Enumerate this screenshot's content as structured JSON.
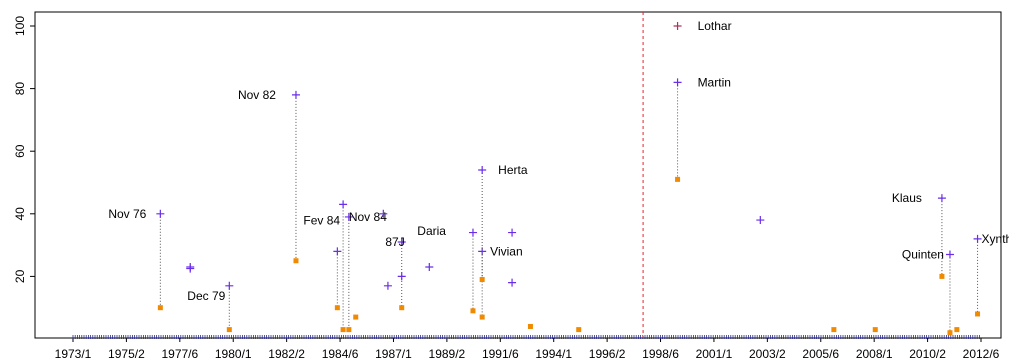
{
  "chart_data": {
    "type": "scatter",
    "title": "",
    "xlabel": "",
    "ylabel": "",
    "xlim": [
      1973.1,
      2012.6
    ],
    "ylim": [
      0,
      100
    ],
    "yticks": [
      20,
      40,
      60,
      80,
      100
    ],
    "xtick_labels": [
      "1973/1",
      "1975/2",
      "1977/6",
      "1980/1",
      "1982/2",
      "1984/6",
      "1987/1",
      "1989/2",
      "1991/6",
      "1994/1",
      "1996/2",
      "1998/6",
      "2001/1",
      "2003/2",
      "2005/6",
      "2008/1",
      "2010/2",
      "2012/6"
    ],
    "colors": {
      "plus": "#6a2ee8",
      "square": "#f08a00",
      "stem": "#555555",
      "vline": "#e8202a",
      "rug": "#2b2b8a"
    },
    "vline_x": 1997.9,
    "storms": [
      {
        "label": "Nov 76",
        "x": 1976.9,
        "plus": 40,
        "square": 10
      },
      {
        "label": "",
        "x": 1978.2,
        "plus": 22.5,
        "square": null
      },
      {
        "label": "",
        "x": 1978.2,
        "plus": 23,
        "square": null
      },
      {
        "label": "Dec 79",
        "x": 1979.9,
        "plus": 17,
        "square": 3
      },
      {
        "label": "Nov 82",
        "x": 1982.8,
        "plus": 78,
        "square": 25
      },
      {
        "label": "",
        "x": 1984.6,
        "plus": 28,
        "square": 10
      },
      {
        "label": "Fev 84",
        "x": 1984.85,
        "plus": 43,
        "square": 3
      },
      {
        "label": "Nov 84",
        "x": 1985.1,
        "plus": 39,
        "square": 3
      },
      {
        "label": "",
        "x": 1985.4,
        "plus": null,
        "square": 7
      },
      {
        "label": "",
        "x": 1986.6,
        "plus": 40,
        "square": null
      },
      {
        "label": "",
        "x": 1986.8,
        "plus": 17,
        "square": null
      },
      {
        "label": "87J",
        "x": 1987.4,
        "plus": 31,
        "square": 10
      },
      {
        "label": "",
        "x": 1987.4,
        "plus": 20,
        "square": null
      },
      {
        "label": "Daria",
        "x": 1988.6,
        "plus": 23,
        "square": null
      },
      {
        "label": "",
        "x": 1990.5,
        "plus": 34,
        "square": 9
      },
      {
        "label": "Vivian",
        "x": 1990.9,
        "plus": 28,
        "square": 7
      },
      {
        "label": "Herta",
        "x": 1990.9,
        "plus": 54,
        "square": 19
      },
      {
        "label": "",
        "x": 1992.2,
        "plus": 34,
        "square": null
      },
      {
        "label": "",
        "x": 1992.2,
        "plus": 18,
        "square": null
      },
      {
        "label": "",
        "x": 1993.0,
        "plus": null,
        "square": 4
      },
      {
        "label": "",
        "x": 1995.1,
        "plus": null,
        "square": 3
      },
      {
        "label": "Lothar",
        "x": 1999.4,
        "plus": 100,
        "square": null
      },
      {
        "label": "Martin",
        "x": 1999.4,
        "plus": 82,
        "square": 51
      },
      {
        "label": "",
        "x": 2003.0,
        "plus": 38,
        "square": null
      },
      {
        "label": "",
        "x": 2006.2,
        "plus": null,
        "square": 3
      },
      {
        "label": "",
        "x": 2008.0,
        "plus": null,
        "square": 3
      },
      {
        "label": "Klaus",
        "x": 2010.9,
        "plus": 45,
        "square": 20
      },
      {
        "label": "Quinten",
        "x": 2011.25,
        "plus": 27,
        "square": 2
      },
      {
        "label": "",
        "x": 2011.55,
        "plus": null,
        "square": 3
      },
      {
        "label": "Xynthia",
        "x": 2012.45,
        "plus": 32,
        "square": 8
      }
    ]
  }
}
